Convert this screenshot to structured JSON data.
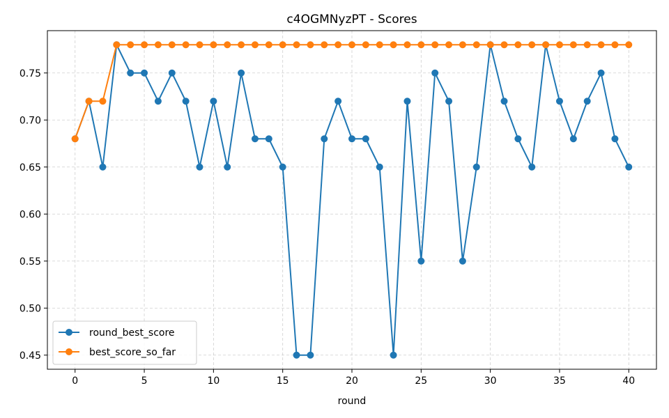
{
  "chart_data": {
    "type": "line",
    "title": "c4OGMNyzPT - Scores",
    "xlabel": "round",
    "ylabel": "",
    "xlim": [
      -2,
      42
    ],
    "ylim": [
      0.435,
      0.795
    ],
    "x_ticks": [
      0,
      5,
      10,
      15,
      20,
      25,
      30,
      35,
      40
    ],
    "y_ticks": [
      0.45,
      0.5,
      0.55,
      0.6,
      0.65,
      0.7,
      0.75
    ],
    "y_tick_labels": [
      "0.45",
      "0.50",
      "0.55",
      "0.60",
      "0.65",
      "0.70",
      "0.75"
    ],
    "grid": true,
    "legend_position": "lower-left",
    "x": [
      0,
      1,
      2,
      3,
      4,
      5,
      6,
      7,
      8,
      9,
      10,
      11,
      12,
      13,
      14,
      15,
      16,
      17,
      18,
      19,
      20,
      21,
      22,
      23,
      24,
      25,
      26,
      27,
      28,
      29,
      30,
      31,
      32,
      33,
      34,
      35,
      36,
      37,
      38,
      39,
      40
    ],
    "series": [
      {
        "name": "round_best_score",
        "color": "#1f77b4",
        "values": [
          0.68,
          0.72,
          0.65,
          0.78,
          0.75,
          0.75,
          0.72,
          0.75,
          0.72,
          0.65,
          0.72,
          0.65,
          0.75,
          0.68,
          0.68,
          0.65,
          0.45,
          0.45,
          0.68,
          0.72,
          0.68,
          0.68,
          0.65,
          0.45,
          0.72,
          0.55,
          0.75,
          0.72,
          0.55,
          0.65,
          0.78,
          0.72,
          0.68,
          0.65,
          0.78,
          0.72,
          0.68,
          0.72,
          0.75,
          0.68,
          0.65
        ]
      },
      {
        "name": "best_score_so_far",
        "color": "#ff7f0e",
        "values": [
          0.68,
          0.72,
          0.72,
          0.78,
          0.78,
          0.78,
          0.78,
          0.78,
          0.78,
          0.78,
          0.78,
          0.78,
          0.78,
          0.78,
          0.78,
          0.78,
          0.78,
          0.78,
          0.78,
          0.78,
          0.78,
          0.78,
          0.78,
          0.78,
          0.78,
          0.78,
          0.78,
          0.78,
          0.78,
          0.78,
          0.78,
          0.78,
          0.78,
          0.78,
          0.78,
          0.78,
          0.78,
          0.78,
          0.78,
          0.78,
          0.78
        ]
      }
    ]
  }
}
